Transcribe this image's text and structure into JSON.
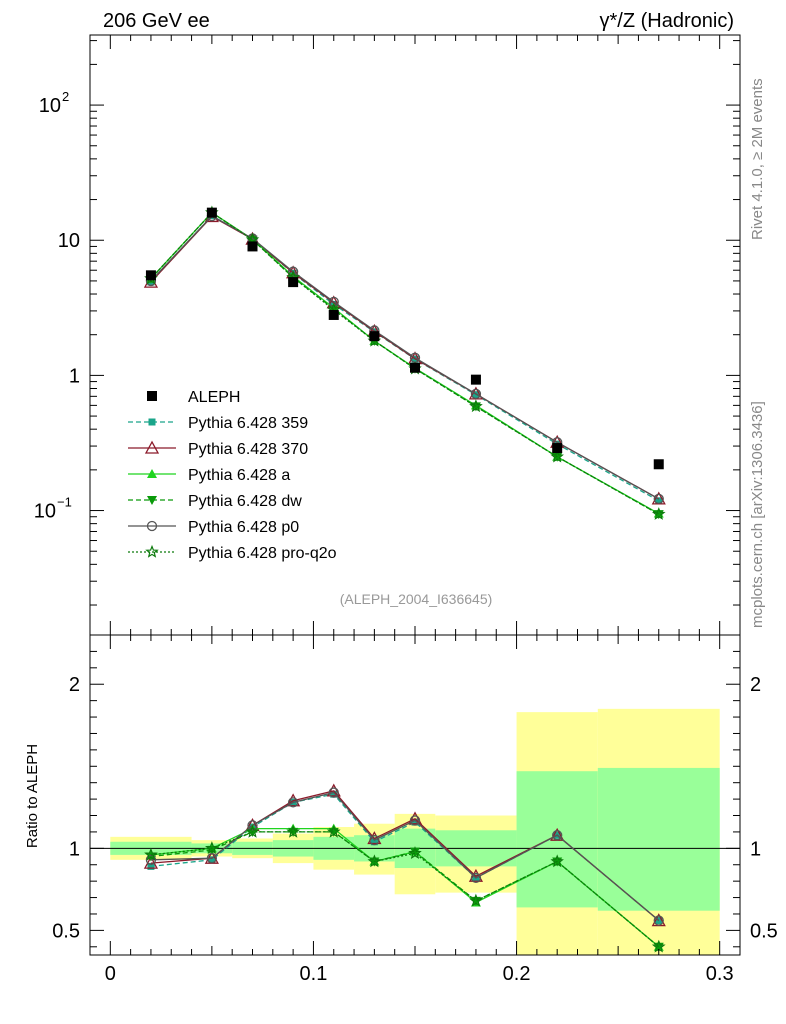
{
  "header": {
    "left_title": "206 GeV ee",
    "right_title": "γ*/Z (Hadronic)"
  },
  "side_text": {
    "rivet": "Rivet 4.1.0, ≥ 2M events",
    "mcplots": "mcplots.cern.ch [arXiv:1306.3436]"
  },
  "analysis_label": "(ALEPH_2004_I636645)",
  "colors": {
    "data": "#000000",
    "p359": "#1aa58a",
    "p370": "#8b1a2a",
    "pa": "#1fd41f",
    "pdw": "#0a9a0a",
    "pp0": "#555555",
    "pq2o": "#0c7a0c",
    "band_inner": "#99ff99",
    "band_outer": "#ffff99"
  },
  "chart_data": [
    {
      "type": "line",
      "scale": "log",
      "xlim": [
        -0.01,
        0.31
      ],
      "ylim": [
        0.012,
        330
      ],
      "yticks_major": [
        {
          "v": 0.1,
          "base": "10",
          "exp": "−1"
        },
        {
          "v": 1,
          "label": "1"
        },
        {
          "v": 10,
          "label": "10"
        },
        {
          "v": 100,
          "base": "10",
          "exp": "2"
        }
      ],
      "x": [
        0.02,
        0.05,
        0.07,
        0.09,
        0.11,
        0.13,
        0.15,
        0.18,
        0.22,
        0.27
      ],
      "data": {
        "name": "ALEPH",
        "values": [
          5.5,
          16.0,
          9.0,
          4.9,
          2.8,
          1.95,
          1.14,
          0.93,
          0.29,
          0.22
        ]
      },
      "series": [
        {
          "key": "p359",
          "name": "Pythia 6.428 359",
          "dash": "5,3",
          "marker": "square",
          "values": [
            4.9,
            15.2,
            10.2,
            5.7,
            3.35,
            2.1,
            1.32,
            0.72,
            0.31,
            0.118
          ]
        },
        {
          "key": "p370",
          "name": "Pythia 6.428 370",
          "dash": "",
          "marker": "triangle-open",
          "values": [
            4.9,
            15.0,
            10.2,
            5.75,
            3.45,
            2.12,
            1.33,
            0.73,
            0.32,
            0.122
          ]
        },
        {
          "key": "pa",
          "name": "Pythia 6.428 a",
          "dash": "",
          "marker": "triangle",
          "values": [
            5.2,
            16.0,
            10.2,
            5.4,
            3.15,
            1.8,
            1.13,
            0.6,
            0.25,
            0.095
          ]
        },
        {
          "key": "pdw",
          "name": "Pythia 6.428 dw",
          "dash": "5,3",
          "marker": "triangle-down",
          "values": [
            5.2,
            16.0,
            10.1,
            5.3,
            3.1,
            1.8,
            1.12,
            0.59,
            0.25,
            0.094
          ]
        },
        {
          "key": "pp0",
          "name": "Pythia 6.428 p0",
          "dash": "",
          "marker": "circle-open",
          "values": [
            5.0,
            15.1,
            10.3,
            5.85,
            3.5,
            2.15,
            1.35,
            0.73,
            0.32,
            0.122
          ]
        },
        {
          "key": "pq2o",
          "name": "Pythia 6.428 pro-q2o",
          "dash": "2,2",
          "marker": "star",
          "values": [
            5.2,
            16.0,
            10.1,
            5.3,
            3.05,
            1.8,
            1.12,
            0.59,
            0.25,
            0.094
          ]
        }
      ]
    },
    {
      "type": "line",
      "ylabel": "Ratio to ALEPH",
      "xlim": [
        -0.01,
        0.31
      ],
      "ylim": [
        0.35,
        2.3
      ],
      "xticks": [
        {
          "v": 0,
          "label": "0"
        },
        {
          "v": 0.1,
          "label": "0.1"
        },
        {
          "v": 0.2,
          "label": "0.2"
        },
        {
          "v": 0.3,
          "label": "0.3"
        }
      ],
      "yticks": [
        {
          "v": 0.5,
          "label": "0.5"
        },
        {
          "v": 1,
          "label": "1"
        },
        {
          "v": 2,
          "label": "2"
        }
      ],
      "bands": [
        {
          "x0": 0.0,
          "x1": 0.04,
          "in_lo": 0.96,
          "in_hi": 1.04,
          "out_lo": 0.93,
          "out_hi": 1.07
        },
        {
          "x0": 0.04,
          "x1": 0.06,
          "in_lo": 0.97,
          "in_hi": 1.03,
          "out_lo": 0.95,
          "out_hi": 1.05
        },
        {
          "x0": 0.06,
          "x1": 0.08,
          "in_lo": 0.96,
          "in_hi": 1.04,
          "out_lo": 0.94,
          "out_hi": 1.06
        },
        {
          "x0": 0.08,
          "x1": 0.1,
          "in_lo": 0.95,
          "in_hi": 1.05,
          "out_lo": 0.91,
          "out_hi": 1.09
        },
        {
          "x0": 0.1,
          "x1": 0.12,
          "in_lo": 0.93,
          "in_hi": 1.07,
          "out_lo": 0.87,
          "out_hi": 1.13
        },
        {
          "x0": 0.12,
          "x1": 0.14,
          "in_lo": 0.92,
          "in_hi": 1.08,
          "out_lo": 0.84,
          "out_hi": 1.15
        },
        {
          "x0": 0.14,
          "x1": 0.16,
          "in_lo": 0.88,
          "in_hi": 1.12,
          "out_lo": 0.72,
          "out_hi": 1.21
        },
        {
          "x0": 0.16,
          "x1": 0.2,
          "in_lo": 0.89,
          "in_hi": 1.11,
          "out_lo": 0.73,
          "out_hi": 1.2
        },
        {
          "x0": 0.2,
          "x1": 0.24,
          "in_lo": 0.64,
          "in_hi": 1.47,
          "out_lo": 0.35,
          "out_hi": 1.83
        },
        {
          "x0": 0.24,
          "x1": 0.3,
          "in_lo": 0.62,
          "in_hi": 1.49,
          "out_lo": 0.35,
          "out_hi": 1.85
        }
      ],
      "x": [
        0.02,
        0.05,
        0.07,
        0.09,
        0.11,
        0.13,
        0.15,
        0.18,
        0.22,
        0.27
      ],
      "series": [
        {
          "key": "p359",
          "dash": "5,3",
          "marker": "square",
          "values": [
            0.89,
            0.93,
            1.13,
            1.28,
            1.33,
            1.04,
            1.16,
            0.82,
            1.08,
            0.56
          ]
        },
        {
          "key": "p370",
          "dash": "",
          "marker": "triangle-open",
          "values": [
            0.91,
            0.94,
            1.14,
            1.29,
            1.35,
            1.06,
            1.18,
            0.83,
            1.08,
            0.56
          ]
        },
        {
          "key": "pa",
          "dash": "",
          "marker": "triangle",
          "values": [
            0.96,
            1.0,
            1.12,
            1.12,
            1.12,
            0.92,
            0.98,
            0.67,
            0.92,
            0.4
          ]
        },
        {
          "key": "pdw",
          "dash": "5,3",
          "marker": "triangle-down",
          "values": [
            0.95,
            0.99,
            1.1,
            1.1,
            1.1,
            0.92,
            0.98,
            0.68,
            0.92,
            0.4
          ]
        },
        {
          "key": "pp0",
          "dash": "",
          "marker": "circle-open",
          "values": [
            0.93,
            0.94,
            1.14,
            1.28,
            1.34,
            1.05,
            1.17,
            0.82,
            1.08,
            0.56
          ]
        },
        {
          "key": "pq2o",
          "dash": "2,2",
          "marker": "star",
          "values": [
            0.96,
            1.0,
            1.1,
            1.1,
            1.1,
            0.92,
            0.97,
            0.68,
            0.92,
            0.4
          ]
        }
      ]
    }
  ]
}
